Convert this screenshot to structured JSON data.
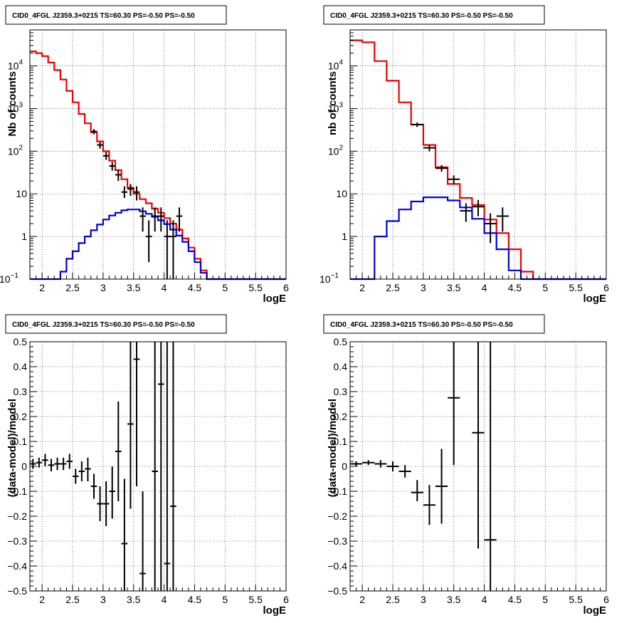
{
  "chart_data": [
    {
      "type": "histogram",
      "title": "CID0_4FGL J2359.3+0215 TS=60.30 PS=-0.50 PS=-0.50",
      "xlabel": "logE",
      "ylabel": "Nb of counts",
      "ylog": true,
      "xlim": [
        1.8,
        6.0
      ],
      "ylim": [
        0.1,
        70000
      ],
      "xticks": [
        "2",
        "2.5",
        "3",
        "3.5",
        "4",
        "4.5",
        "5",
        "5.5",
        "6"
      ],
      "yticks": [
        {
          "v": 0.1,
          "label": "10",
          "sup": "−1"
        },
        {
          "v": 1,
          "label": "1",
          "sup": ""
        },
        {
          "v": 10,
          "label": "10",
          "sup": ""
        },
        {
          "v": 100,
          "label": "10",
          "sup": "2"
        },
        {
          "v": 1000,
          "label": "10",
          "sup": "3"
        },
        {
          "v": 10000,
          "label": "10",
          "sup": "4"
        }
      ],
      "grid": true,
      "bin_width": 0.1,
      "bin_edges_start": 1.8,
      "series": [
        {
          "color": "#ee0000",
          "values": [
            22000,
            20000,
            17000,
            12000,
            8000,
            4800,
            2600,
            1400,
            750,
            450,
            280,
            170,
            100,
            60,
            36,
            22,
            14,
            10,
            7.5,
            6.0,
            4.5,
            3.6,
            2.7,
            2.0,
            1.45,
            0.9,
            0.55,
            0.3,
            0.16,
            0.1,
            0.1,
            0.1,
            0.1,
            0.1,
            0.1,
            0.1,
            0.1,
            0.1,
            0.1,
            0.1,
            0.1,
            0.1
          ]
        },
        {
          "color": "#0000dd",
          "values": [
            0.1,
            0.1,
            0.1,
            0.1,
            0.1,
            0.15,
            0.3,
            0.45,
            0.7,
            1.0,
            1.4,
            1.9,
            2.5,
            3.1,
            3.6,
            4.1,
            4.3,
            4.3,
            3.9,
            3.4,
            2.9,
            2.4,
            1.95,
            1.45,
            1.05,
            0.75,
            0.45,
            0.25,
            0.14,
            0.1,
            0.1,
            0.1,
            0.1,
            0.1,
            0.1,
            0.1,
            0.1,
            0.1,
            0.1,
            0.1,
            0.1,
            0.1
          ]
        }
      ],
      "points": [
        {
          "x": 2.85,
          "y": 290,
          "lo": 250,
          "hi": 330
        },
        {
          "x": 2.95,
          "y": 140,
          "lo": 115,
          "hi": 165
        },
        {
          "x": 3.05,
          "y": 78,
          "lo": 63,
          "hi": 95
        },
        {
          "x": 3.15,
          "y": 45,
          "lo": 35,
          "hi": 56
        },
        {
          "x": 3.25,
          "y": 28,
          "lo": 20,
          "hi": 36
        },
        {
          "x": 3.35,
          "y": 11,
          "lo": 8,
          "hi": 15
        },
        {
          "x": 3.45,
          "y": 13,
          "lo": 9,
          "hi": 17
        },
        {
          "x": 3.55,
          "y": 11,
          "lo": 7,
          "hi": 15
        },
        {
          "x": 3.65,
          "y": 3.0,
          "lo": 1.3,
          "hi": 4.8
        },
        {
          "x": 3.75,
          "y": 1.0,
          "lo": 0.25,
          "hi": 2.4
        },
        {
          "x": 3.85,
          "y": 3.0,
          "lo": 1.3,
          "hi": 4.8
        },
        {
          "x": 3.95,
          "y": 3.0,
          "lo": 1.3,
          "hi": 4.8
        },
        {
          "x": 4.05,
          "y": 1.0,
          "lo": 0.1,
          "hi": 2.4
        },
        {
          "x": 4.15,
          "y": 1.0,
          "lo": 0.1,
          "hi": 2.4
        },
        {
          "x": 4.25,
          "y": 3.0,
          "lo": 1.3,
          "hi": 4.8
        }
      ]
    },
    {
      "type": "histogram",
      "title": "CID0_4FGL J2359.3+0215 TS=60.30 PS=-0.50 PS=-0.50",
      "xlabel": "logE",
      "ylabel": "nb of counts",
      "ylog": true,
      "xlim": [
        1.8,
        6.0
      ],
      "ylim": [
        0.1,
        70000
      ],
      "xticks": [
        "2",
        "2.5",
        "3",
        "3.5",
        "4",
        "4.5",
        "5",
        "5.5",
        "6"
      ],
      "yticks": [
        {
          "v": 0.1,
          "label": "10",
          "sup": "−1"
        },
        {
          "v": 1,
          "label": "1",
          "sup": ""
        },
        {
          "v": 10,
          "label": "10",
          "sup": ""
        },
        {
          "v": 100,
          "label": "10",
          "sup": "2"
        },
        {
          "v": 1000,
          "label": "10",
          "sup": "3"
        },
        {
          "v": 10000,
          "label": "10",
          "sup": "4"
        }
      ],
      "grid": true,
      "bin_width": 0.2,
      "bin_edges_start": 1.8,
      "series": [
        {
          "color": "#ee0000",
          "values": [
            40000,
            36000,
            13000,
            4500,
            1400,
            420,
            140,
            42,
            17,
            8.0,
            5.5,
            2.5,
            1.2,
            0.5,
            0.15,
            0.1,
            0.1,
            0.1,
            0.1,
            0.1,
            0.1
          ]
        },
        {
          "color": "#0000dd",
          "values": [
            0.1,
            0.1,
            1.0,
            2.3,
            4.3,
            6.6,
            8.3,
            8.3,
            7.0,
            4.8,
            2.6,
            1.2,
            0.5,
            0.16,
            0.1,
            0.1,
            0.1,
            0.1,
            0.1,
            0.1,
            0.1
          ]
        }
      ],
      "points": [
        {
          "x": 2.9,
          "y": 420,
          "lo": 370,
          "hi": 470
        },
        {
          "x": 3.1,
          "y": 120,
          "lo": 100,
          "hi": 140
        },
        {
          "x": 3.3,
          "y": 40,
          "lo": 33,
          "hi": 47
        },
        {
          "x": 3.5,
          "y": 22,
          "lo": 17,
          "hi": 27
        },
        {
          "x": 3.7,
          "y": 4.0,
          "lo": 2.2,
          "hi": 6.0
        },
        {
          "x": 3.9,
          "y": 5.0,
          "lo": 3.0,
          "hi": 7.2
        },
        {
          "x": 4.1,
          "y": 2.0,
          "lo": 0.7,
          "hi": 3.5
        },
        {
          "x": 4.3,
          "y": 3.0,
          "lo": 1.3,
          "hi": 4.8
        }
      ]
    },
    {
      "type": "scatter",
      "title": "CID0_4FGL J2359.3+0215 TS=60.30 PS=-0.50 PS=-0.50",
      "xlabel": "logE",
      "ylabel": "(data-model)/model",
      "ylog": false,
      "xlim": [
        1.8,
        6.0
      ],
      "ylim": [
        -0.5,
        0.5
      ],
      "xticks": [
        "2",
        "2.5",
        "3",
        "3.5",
        "4",
        "4.5",
        "5",
        "5.5",
        "6"
      ],
      "yticks": [
        {
          "v": -0.5,
          "label": "−0.5"
        },
        {
          "v": -0.4,
          "label": "−0.4"
        },
        {
          "v": -0.3,
          "label": "−0.3"
        },
        {
          "v": -0.2,
          "label": "−0.2"
        },
        {
          "v": -0.1,
          "label": "−0.1"
        },
        {
          "v": 0,
          "label": "0"
        },
        {
          "v": 0.1,
          "label": "0.1"
        },
        {
          "v": 0.2,
          "label": "0.2"
        },
        {
          "v": 0.3,
          "label": "0.3"
        },
        {
          "v": 0.4,
          "label": "0.4"
        },
        {
          "v": 0.5,
          "label": "0.5"
        }
      ],
      "grid": true,
      "xerr": 0.05,
      "points": [
        {
          "x": 1.85,
          "y": 0.01,
          "lo": -0.01,
          "hi": 0.03
        },
        {
          "x": 1.95,
          "y": 0.015,
          "lo": -0.005,
          "hi": 0.035
        },
        {
          "x": 2.05,
          "y": 0.025,
          "lo": 0.0,
          "hi": 0.05
        },
        {
          "x": 2.15,
          "y": 0.005,
          "lo": -0.02,
          "hi": 0.03
        },
        {
          "x": 2.25,
          "y": 0.01,
          "lo": -0.015,
          "hi": 0.035
        },
        {
          "x": 2.35,
          "y": 0.01,
          "lo": -0.015,
          "hi": 0.035
        },
        {
          "x": 2.45,
          "y": 0.02,
          "lo": -0.01,
          "hi": 0.05
        },
        {
          "x": 2.55,
          "y": -0.04,
          "lo": -0.07,
          "hi": -0.01
        },
        {
          "x": 2.65,
          "y": -0.02,
          "lo": -0.06,
          "hi": 0.02
        },
        {
          "x": 2.75,
          "y": -0.01,
          "lo": -0.06,
          "hi": 0.035
        },
        {
          "x": 2.85,
          "y": -0.08,
          "lo": -0.13,
          "hi": -0.03
        },
        {
          "x": 2.95,
          "y": -0.15,
          "lo": -0.22,
          "hi": -0.08
        },
        {
          "x": 3.05,
          "y": -0.15,
          "lo": -0.24,
          "hi": -0.06
        },
        {
          "x": 3.15,
          "y": -0.1,
          "lo": -0.21,
          "hi": 0.0
        },
        {
          "x": 3.25,
          "y": 0.06,
          "lo": -0.14,
          "hi": 0.26
        },
        {
          "x": 3.35,
          "y": -0.31,
          "lo": -0.5,
          "hi": -0.05
        },
        {
          "x": 3.45,
          "y": 0.17,
          "lo": -0.17,
          "hi": 0.5
        },
        {
          "x": 3.55,
          "y": 0.43,
          "lo": -0.08,
          "hi": 0.5
        },
        {
          "x": 3.65,
          "y": -0.43,
          "lo": -0.5,
          "hi": -0.1
        },
        {
          "x": 3.85,
          "y": -0.02,
          "lo": -0.5,
          "hi": 0.5
        },
        {
          "x": 3.95,
          "y": 0.33,
          "lo": -0.5,
          "hi": 0.5
        },
        {
          "x": 4.05,
          "y": -0.39,
          "lo": -0.5,
          "hi": 0.5
        },
        {
          "x": 4.15,
          "y": -0.16,
          "lo": -0.5,
          "hi": 0.5
        }
      ]
    },
    {
      "type": "scatter",
      "title": "CID0_4FGL J2359.3+0215 TS=60.30 PS=-0.50 PS=-0.50",
      "xlabel": "logE",
      "ylabel": "(data-model)/model",
      "ylog": false,
      "xlim": [
        1.8,
        6.0
      ],
      "ylim": [
        -0.5,
        0.5
      ],
      "xticks": [
        "2",
        "2.5",
        "3",
        "3.5",
        "4",
        "4.5",
        "5",
        "5.5",
        "6"
      ],
      "yticks": [
        {
          "v": -0.5,
          "label": "−0.5"
        },
        {
          "v": -0.4,
          "label": "−0.4"
        },
        {
          "v": -0.3,
          "label": "−0.3"
        },
        {
          "v": -0.2,
          "label": "−0.2"
        },
        {
          "v": -0.1,
          "label": "−0.1"
        },
        {
          "v": 0,
          "label": "0"
        },
        {
          "v": 0.1,
          "label": "0.1"
        },
        {
          "v": 0.2,
          "label": "0.2"
        },
        {
          "v": 0.3,
          "label": "0.3"
        },
        {
          "v": 0.4,
          "label": "0.4"
        },
        {
          "v": 0.5,
          "label": "0.5"
        }
      ],
      "grid": true,
      "xerr": 0.1,
      "points": [
        {
          "x": 1.9,
          "y": 0.01,
          "lo": 0.0,
          "hi": 0.02
        },
        {
          "x": 2.1,
          "y": 0.015,
          "lo": 0.005,
          "hi": 0.025
        },
        {
          "x": 2.3,
          "y": 0.01,
          "lo": -0.005,
          "hi": 0.025
        },
        {
          "x": 2.5,
          "y": 0.0,
          "lo": -0.02,
          "hi": 0.02
        },
        {
          "x": 2.7,
          "y": -0.02,
          "lo": -0.045,
          "hi": 0.005
        },
        {
          "x": 2.9,
          "y": -0.105,
          "lo": -0.14,
          "hi": -0.055
        },
        {
          "x": 3.1,
          "y": -0.155,
          "lo": -0.235,
          "hi": -0.075
        },
        {
          "x": 3.3,
          "y": -0.08,
          "lo": -0.23,
          "hi": 0.07
        },
        {
          "x": 3.5,
          "y": 0.275,
          "lo": 0.005,
          "hi": 0.5
        },
        {
          "x": 3.9,
          "y": 0.135,
          "lo": -0.33,
          "hi": 0.5
        },
        {
          "x": 4.1,
          "y": -0.295,
          "lo": -0.5,
          "hi": 0.5
        }
      ]
    }
  ]
}
